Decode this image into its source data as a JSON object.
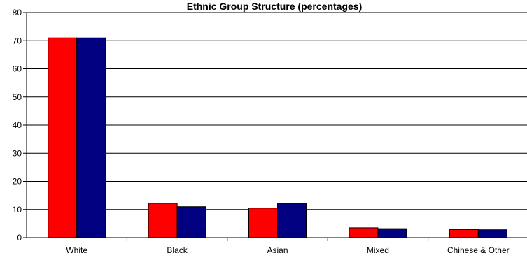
{
  "chart_data": {
    "type": "bar",
    "title": "Ethnic Group Structure (percentages)",
    "xlabel": "",
    "ylabel": "",
    "categories": [
      "White",
      "Black",
      "Asian",
      "Mixed",
      "Chinese & Other"
    ],
    "series": [
      {
        "values": [
          71,
          12.2,
          10.5,
          3.5,
          2.9
        ],
        "color": "#ff0000"
      },
      {
        "values": [
          71,
          11,
          12.2,
          3.2,
          2.8
        ],
        "color": "#000080"
      }
    ],
    "ylim": [
      0,
      80
    ],
    "yticks": [
      0,
      10,
      20,
      30,
      40,
      50,
      60,
      70,
      80
    ],
    "grid": true,
    "legend": "none"
  }
}
